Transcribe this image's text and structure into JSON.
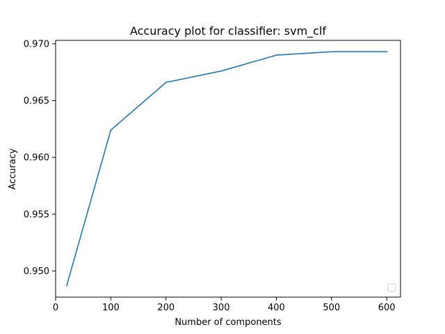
{
  "chart_data": {
    "type": "line",
    "title": "Accuracy plot for classifier: svm_clf",
    "xlabel": "Number of components",
    "ylabel": "Accuracy",
    "xlim": [
      0,
      625
    ],
    "ylim": [
      0.9477,
      0.9703
    ],
    "x_ticks": [
      0,
      100,
      200,
      300,
      400,
      500,
      600
    ],
    "x_tick_labels": [
      "0",
      "100",
      "200",
      "300",
      "400",
      "500",
      "600"
    ],
    "y_ticks": [
      0.95,
      0.955,
      0.96,
      0.965,
      0.97
    ],
    "y_tick_labels": [
      "0.950",
      "0.955",
      "0.960",
      "0.965",
      "0.970"
    ],
    "grid": false,
    "legend": {
      "placement": "lower-right",
      "entries": []
    },
    "series": [
      {
        "color": "#1f77b4",
        "x": [
          20,
          100,
          200,
          300,
          400,
          500,
          600
        ],
        "values": [
          0.9487,
          0.9624,
          0.9666,
          0.9676,
          0.969,
          0.9693,
          0.9693
        ]
      }
    ]
  }
}
